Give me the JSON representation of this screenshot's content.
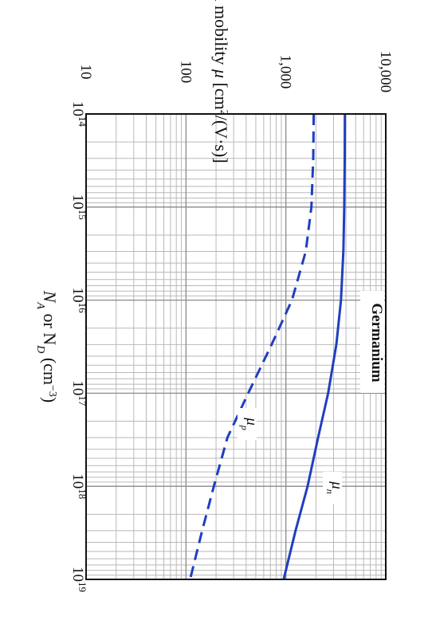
{
  "chart_data": {
    "type": "line",
    "x_axis": {
      "label_main": "N",
      "label_sub1": "A",
      "label_mid": " or N",
      "label_sub2": "D",
      "label_unit": " (cm",
      "label_exp": "−3",
      "label_close": ")",
      "scale": "log",
      "range": [
        100000000000000.0,
        1e+19
      ],
      "ticks": [
        {
          "value": 100000000000000.0,
          "base": "10",
          "exp": "14"
        },
        {
          "value": 1000000000000000.0,
          "base": "10",
          "exp": "15"
        },
        {
          "value": 1e+16,
          "base": "10",
          "exp": "16"
        },
        {
          "value": 1e+17,
          "base": "10",
          "exp": "17"
        },
        {
          "value": 1e+18,
          "base": "10",
          "exp": "18"
        },
        {
          "value": 1e+19,
          "base": "10",
          "exp": "19"
        }
      ]
    },
    "y_axis": {
      "label_pre": "Low field mobility ",
      "label_mu": "μ",
      "label_unit_open": " [cm",
      "label_unit_exp": "2",
      "label_unit_close": "/(V·s)]",
      "scale": "log",
      "range": [
        10,
        10000
      ],
      "ticks": [
        {
          "value": 10,
          "label": "10"
        },
        {
          "value": 100,
          "label": "100"
        },
        {
          "value": 1000,
          "label": "1,000"
        },
        {
          "value": 10000,
          "label": "10,000"
        }
      ]
    },
    "grid": true,
    "annotation": "Germanium",
    "series": [
      {
        "name_base": "μ",
        "name_sub": "n",
        "style": "solid",
        "color": "#1f3fbf",
        "x": [
          100000000000000.0,
          300000000000000.0,
          1000000000000000.0,
          3000000000000000.0,
          1e+16,
          3e+16,
          1e+17,
          3e+17,
          1e+18,
          3e+18,
          1e+19
        ],
        "y": [
          3900,
          3880,
          3840,
          3760,
          3560,
          3200,
          2650,
          2100,
          1650,
          1250,
          950
        ]
      },
      {
        "name_base": "μ",
        "name_sub": "p",
        "style": "dashed",
        "color": "#1f3fbf",
        "x": [
          100000000000000.0,
          300000000000000.0,
          1000000000000000.0,
          3000000000000000.0,
          1e+16,
          3e+16,
          1e+17,
          3e+17,
          1e+18,
          3e+18,
          1e+19
        ],
        "y": [
          1900,
          1880,
          1800,
          1580,
          1150,
          720,
          420,
          260,
          190,
          145,
          110
        ]
      }
    ]
  }
}
